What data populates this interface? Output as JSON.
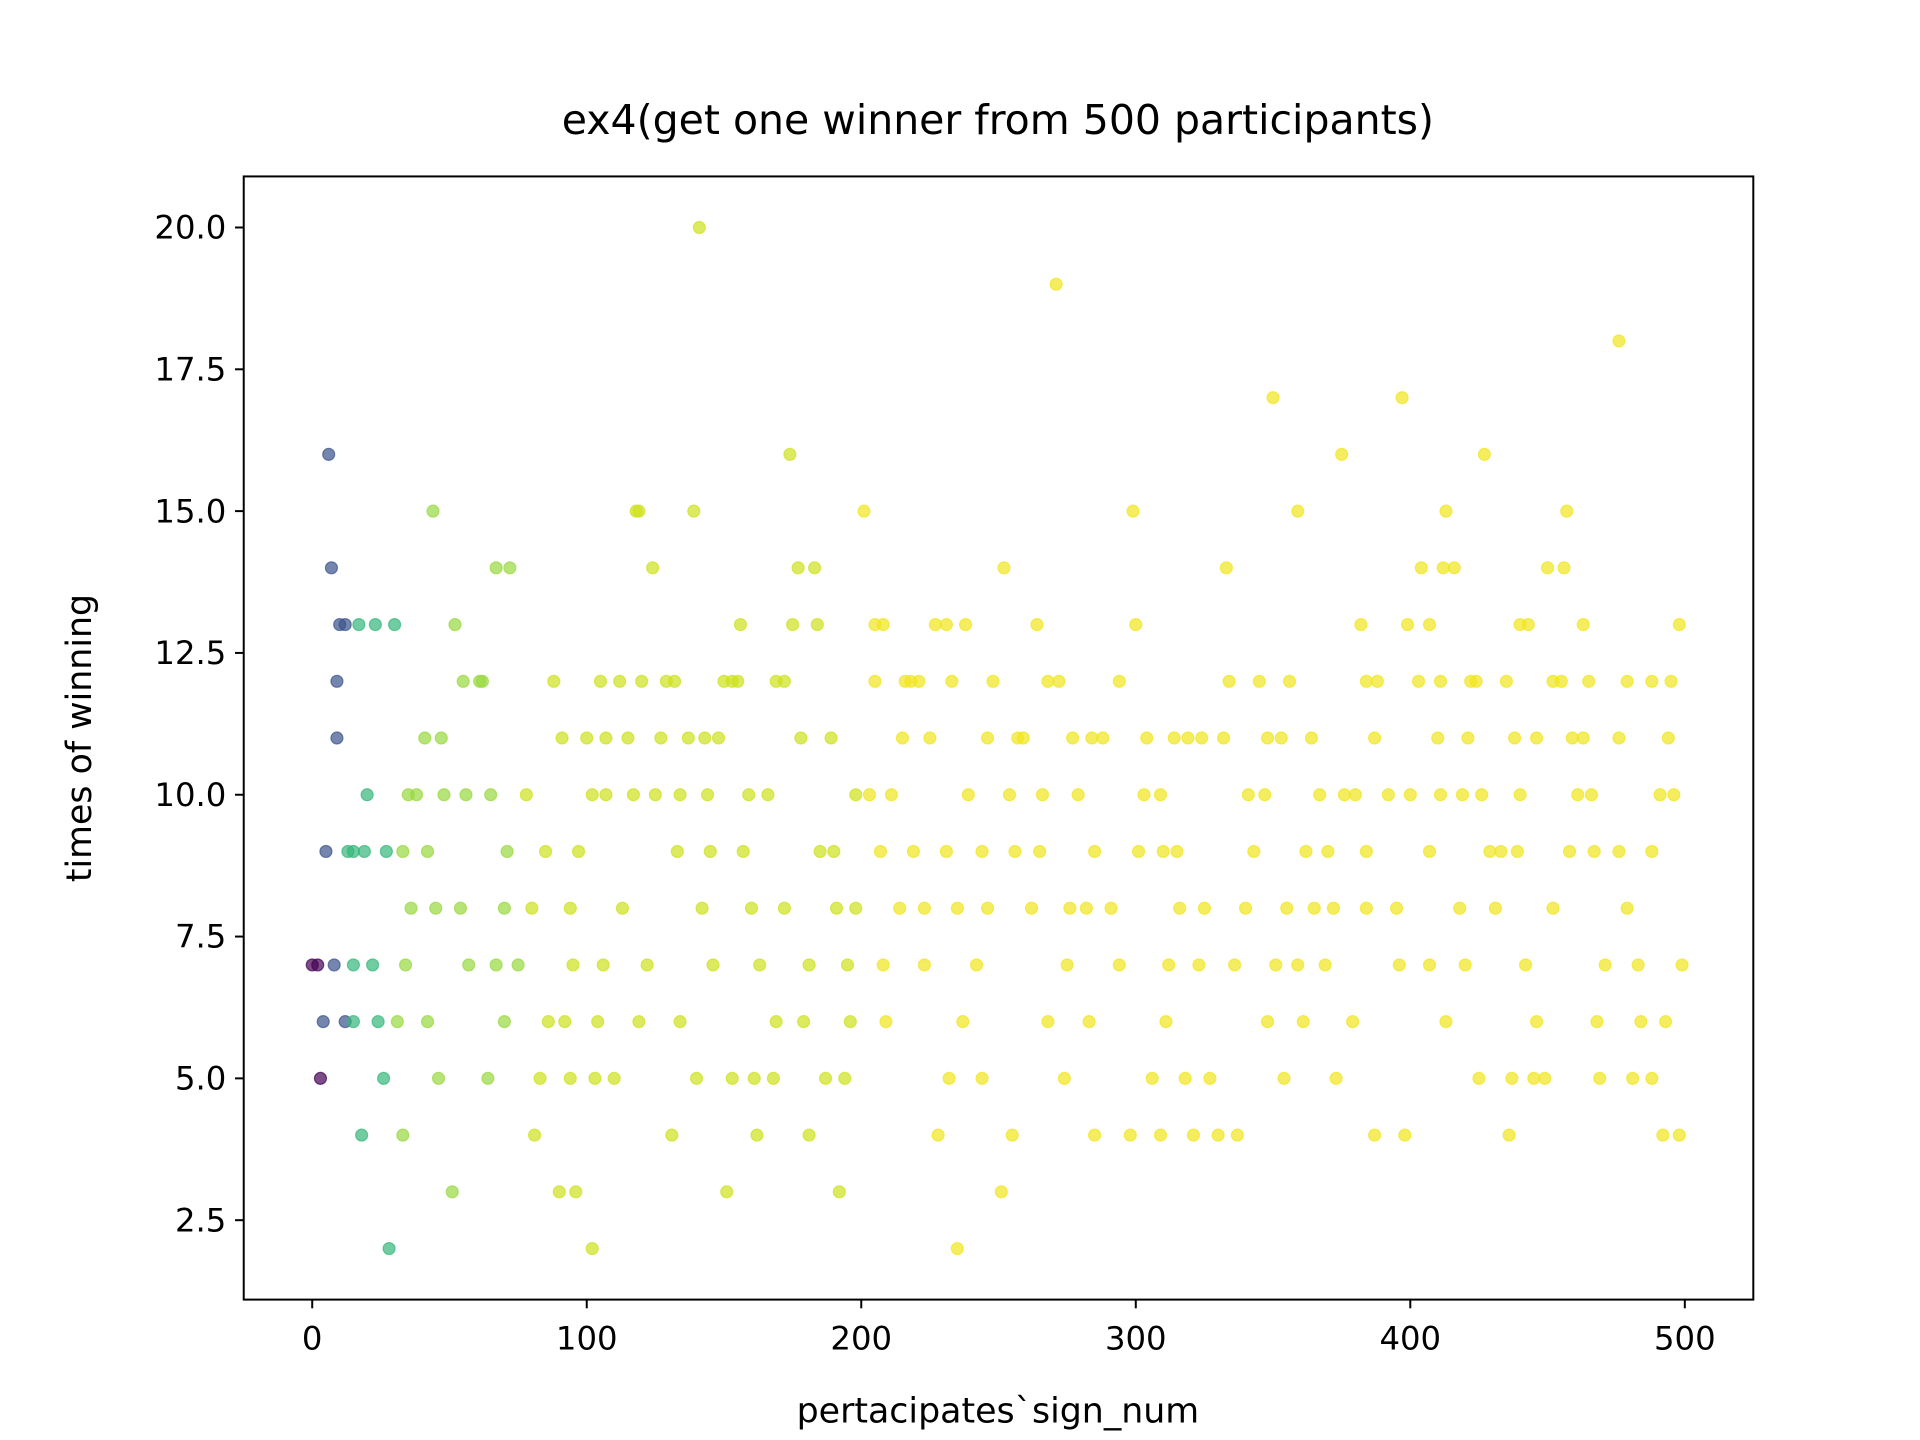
{
  "chart_data": {
    "type": "scatter",
    "title": "ex4(get one winner from 500 participants)",
    "x_label": "pertacipates`sign_num",
    "y_label": "times of winning",
    "xlim": [
      -24.95,
      524.95
    ],
    "ylim": [
      1.1,
      20.9
    ],
    "xticks": [
      0,
      100,
      200,
      300,
      400,
      500
    ],
    "yticks": [
      2.5,
      {
        "value": 5,
        "label": "5.0"
      },
      7.5,
      {
        "value": 10,
        "label": "10.0"
      },
      12.5,
      {
        "value": 15,
        "label": "15.0"
      },
      17.5,
      {
        "value": 20,
        "label": "20.0"
      }
    ],
    "grid": false,
    "alpha": 0.7,
    "series": [
      {
        "color": "#440154",
        "x": [
          0,
          2,
          3
        ],
        "values": [
          7,
          7,
          5
        ]
      },
      {
        "color": "#3b528b",
        "x": [
          6,
          7,
          10,
          12,
          9,
          9,
          5,
          8,
          4,
          12
        ],
        "values": [
          16,
          14,
          13,
          13,
          12,
          11,
          9,
          7,
          6,
          6
        ]
      },
      {
        "color": "#35b779",
        "x": [
          17,
          23,
          30,
          20,
          13,
          15,
          19,
          27,
          15,
          22,
          15,
          24,
          26,
          18,
          28
        ],
        "values": [
          13,
          13,
          13,
          10,
          9,
          9,
          9,
          9,
          7,
          7,
          6,
          6,
          5,
          4,
          2
        ]
      },
      {
        "color": "#98d83e",
        "x": [
          44,
          67,
          72,
          52,
          55,
          61,
          62,
          41,
          47,
          35,
          38,
          48,
          56,
          65,
          33,
          42,
          71,
          36,
          45,
          54,
          70,
          34,
          57,
          67,
          75,
          31,
          42,
          70,
          46,
          64,
          33,
          51
        ],
        "values": [
          15,
          14,
          14,
          13,
          12,
          12,
          12,
          11,
          11,
          10,
          10,
          10,
          10,
          10,
          9,
          9,
          9,
          8,
          8,
          8,
          8,
          7,
          7,
          7,
          7,
          6,
          6,
          6,
          5,
          5,
          4,
          3
        ]
      },
      {
        "color": "#cde11d",
        "x": [
          141,
          174,
          118,
          119,
          139,
          124,
          177,
          183,
          156,
          175,
          184,
          88,
          105,
          112,
          120,
          129,
          132,
          150,
          153,
          155,
          169,
          172,
          91,
          100,
          107,
          115,
          127,
          137,
          143,
          148,
          178,
          189,
          78,
          102,
          107,
          117,
          125,
          134,
          144,
          159,
          166,
          198,
          85,
          97,
          133,
          145,
          157,
          185,
          190,
          80,
          94,
          113,
          142,
          160,
          172,
          191,
          198,
          95,
          106,
          122,
          146,
          163,
          181,
          195,
          86,
          92,
          104,
          119,
          134,
          169,
          179,
          196,
          83,
          94,
          103,
          110,
          140,
          153,
          161,
          168,
          187,
          194,
          81,
          131,
          162,
          181,
          90,
          96,
          151,
          192,
          102
        ],
        "values": [
          20,
          16,
          15,
          15,
          15,
          14,
          14,
          14,
          13,
          13,
          13,
          12,
          12,
          12,
          12,
          12,
          12,
          12,
          12,
          12,
          12,
          12,
          11,
          11,
          11,
          11,
          11,
          11,
          11,
          11,
          11,
          11,
          10,
          10,
          10,
          10,
          10,
          10,
          10,
          10,
          10,
          10,
          9,
          9,
          9,
          9,
          9,
          9,
          9,
          8,
          8,
          8,
          8,
          8,
          8,
          8,
          8,
          7,
          7,
          7,
          7,
          7,
          7,
          7,
          6,
          6,
          6,
          6,
          6,
          6,
          6,
          6,
          5,
          5,
          5,
          5,
          5,
          5,
          5,
          5,
          5,
          5,
          4,
          4,
          4,
          4,
          3,
          3,
          3,
          3,
          2
        ]
      },
      {
        "color": "#f1e51d",
        "x": [
          271,
          476,
          350,
          397,
          375,
          427,
          201,
          299,
          359,
          413,
          457,
          252,
          333,
          404,
          412,
          416,
          450,
          456,
          205,
          208,
          227,
          231,
          238,
          264,
          300,
          382,
          399,
          407,
          440,
          443,
          463,
          498,
          205,
          216,
          218,
          221,
          233,
          248,
          268,
          272,
          294,
          334,
          345,
          356,
          384,
          388,
          403,
          411,
          422,
          424,
          435,
          452,
          455,
          465,
          479,
          488,
          495,
          215,
          225,
          246,
          257,
          259,
          277,
          284,
          288,
          304,
          314,
          319,
          324,
          332,
          348,
          353,
          364,
          387,
          410,
          421,
          438,
          446,
          459,
          463,
          476,
          494,
          203,
          211,
          239,
          254,
          266,
          279,
          303,
          309,
          341,
          347,
          367,
          376,
          380,
          392,
          400,
          411,
          419,
          426,
          440,
          461,
          466,
          491,
          496,
          207,
          219,
          231,
          244,
          256,
          265,
          285,
          301,
          310,
          315,
          343,
          362,
          370,
          384,
          407,
          429,
          433,
          439,
          458,
          467,
          476,
          488,
          214,
          223,
          235,
          246,
          262,
          276,
          282,
          291,
          316,
          325,
          340,
          355,
          365,
          372,
          384,
          395,
          418,
          431,
          452,
          479,
          208,
          223,
          242,
          275,
          294,
          312,
          323,
          336,
          351,
          359,
          369,
          396,
          407,
          420,
          442,
          471,
          483,
          499,
          209,
          237,
          268,
          283,
          311,
          348,
          361,
          379,
          413,
          446,
          468,
          484,
          493,
          232,
          244,
          274,
          306,
          318,
          327,
          354,
          373,
          425,
          437,
          445,
          449,
          469,
          481,
          488,
          228,
          255,
          285,
          298,
          309,
          321,
          330,
          337,
          387,
          398,
          436,
          492,
          498,
          251,
          235
        ],
        "values": [
          19,
          18,
          17,
          17,
          16,
          16,
          15,
          15,
          15,
          15,
          15,
          14,
          14,
          14,
          14,
          14,
          14,
          14,
          13,
          13,
          13,
          13,
          13,
          13,
          13,
          13,
          13,
          13,
          13,
          13,
          13,
          13,
          12,
          12,
          12,
          12,
          12,
          12,
          12,
          12,
          12,
          12,
          12,
          12,
          12,
          12,
          12,
          12,
          12,
          12,
          12,
          12,
          12,
          12,
          12,
          12,
          12,
          11,
          11,
          11,
          11,
          11,
          11,
          11,
          11,
          11,
          11,
          11,
          11,
          11,
          11,
          11,
          11,
          11,
          11,
          11,
          11,
          11,
          11,
          11,
          11,
          11,
          10,
          10,
          10,
          10,
          10,
          10,
          10,
          10,
          10,
          10,
          10,
          10,
          10,
          10,
          10,
          10,
          10,
          10,
          10,
          10,
          10,
          10,
          10,
          9,
          9,
          9,
          9,
          9,
          9,
          9,
          9,
          9,
          9,
          9,
          9,
          9,
          9,
          9,
          9,
          9,
          9,
          9,
          9,
          9,
          9,
          8,
          8,
          8,
          8,
          8,
          8,
          8,
          8,
          8,
          8,
          8,
          8,
          8,
          8,
          8,
          8,
          8,
          8,
          8,
          8,
          7,
          7,
          7,
          7,
          7,
          7,
          7,
          7,
          7,
          7,
          7,
          7,
          7,
          7,
          7,
          7,
          7,
          7,
          6,
          6,
          6,
          6,
          6,
          6,
          6,
          6,
          6,
          6,
          6,
          6,
          6,
          5,
          5,
          5,
          5,
          5,
          5,
          5,
          5,
          5,
          5,
          5,
          5,
          5,
          5,
          5,
          4,
          4,
          4,
          4,
          4,
          4,
          4,
          4,
          4,
          4,
          4,
          4,
          4,
          3,
          2
        ]
      }
    ]
  }
}
